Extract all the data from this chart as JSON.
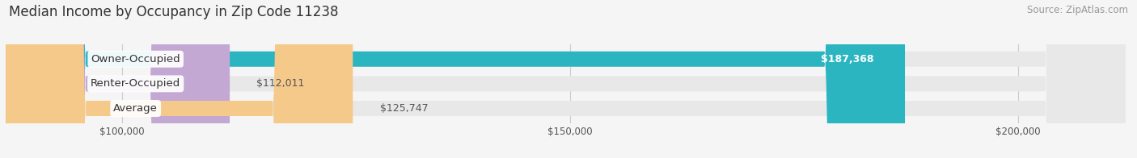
{
  "title": "Median Income by Occupancy in Zip Code 11238",
  "source": "Source: ZipAtlas.com",
  "categories": [
    "Owner-Occupied",
    "Renter-Occupied",
    "Average"
  ],
  "values": [
    187368,
    112011,
    125747
  ],
  "bar_colors": [
    "#2ab5c1",
    "#c4a8d4",
    "#f5c98a"
  ],
  "value_labels": [
    "$187,368",
    "$112,011",
    "$125,747"
  ],
  "xlim_min": 87000,
  "xlim_max": 212000,
  "xticks": [
    100000,
    150000,
    200000
  ],
  "xtick_labels": [
    "$100,000",
    "$150,000",
    "$200,000"
  ],
  "background_color": "#f5f5f5",
  "bar_bg_color": "#e8e8e8",
  "title_fontsize": 12,
  "source_fontsize": 8.5,
  "label_fontsize": 9.5,
  "value_fontsize": 9,
  "tick_fontsize": 8.5
}
